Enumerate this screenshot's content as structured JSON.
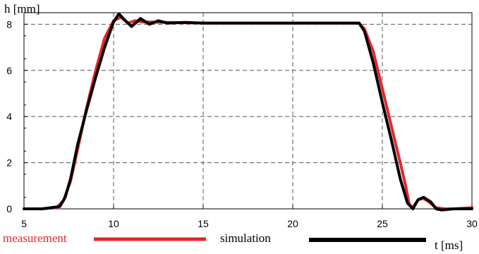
{
  "chart_data": {
    "type": "line",
    "xlabel": "t [ms]",
    "ylabel": "h [mm]",
    "xlim": [
      5,
      30
    ],
    "ylim": [
      0,
      8.5
    ],
    "x_ticks": [
      "5",
      "10",
      "15",
      "20",
      "25",
      "30"
    ],
    "y_ticks": [
      "0",
      "2",
      "4",
      "6",
      "8"
    ],
    "grid": true,
    "legend_position": "bottom",
    "series": [
      {
        "name": "measurement",
        "color": "#e8262b",
        "x": [
          5,
          6,
          6.8,
          7.2,
          7.6,
          8.0,
          8.5,
          9.0,
          9.5,
          10.0,
          10.4,
          10.8,
          11.2,
          11.6,
          12.0,
          13,
          15,
          20,
          23.0,
          23.7,
          24.0,
          24.5,
          25.0,
          25.5,
          26.0,
          26.3,
          26.5,
          26.7,
          27.0,
          27.3,
          27.6,
          28.0,
          28.5,
          29,
          30
        ],
        "y": [
          0,
          0,
          0.05,
          0.35,
          1.2,
          2.6,
          4.4,
          6.0,
          7.4,
          8.15,
          8.3,
          8.05,
          8.15,
          8.1,
          8.1,
          8.08,
          8.05,
          8.05,
          8.05,
          8.05,
          7.8,
          6.8,
          5.2,
          3.6,
          2.0,
          1.0,
          0.2,
          0.05,
          0.4,
          0.45,
          0.3,
          0.05,
          0.0,
          0.0,
          0.05
        ]
      },
      {
        "name": "simulation",
        "color": "#000000",
        "x": [
          5,
          6,
          7.0,
          7.3,
          7.6,
          8.0,
          8.5,
          9.0,
          9.5,
          10.0,
          10.3,
          10.6,
          11.0,
          11.5,
          12.0,
          12.5,
          13.0,
          14,
          15,
          20,
          23.0,
          23.7,
          24.0,
          24.5,
          25.0,
          25.5,
          26.0,
          26.4,
          26.7,
          27.0,
          27.3,
          27.7,
          28.0,
          28.3,
          29,
          30
        ],
        "y": [
          0,
          0,
          0.1,
          0.5,
          1.3,
          2.8,
          4.3,
          5.7,
          7.0,
          8.1,
          8.45,
          8.2,
          7.9,
          8.25,
          8.0,
          8.15,
          8.05,
          8.08,
          8.05,
          8.05,
          8.05,
          8.05,
          7.7,
          6.3,
          4.6,
          3.0,
          1.3,
          0.25,
          0.0,
          0.4,
          0.5,
          0.3,
          0.0,
          -0.05,
          0.0,
          0.0
        ]
      }
    ]
  }
}
